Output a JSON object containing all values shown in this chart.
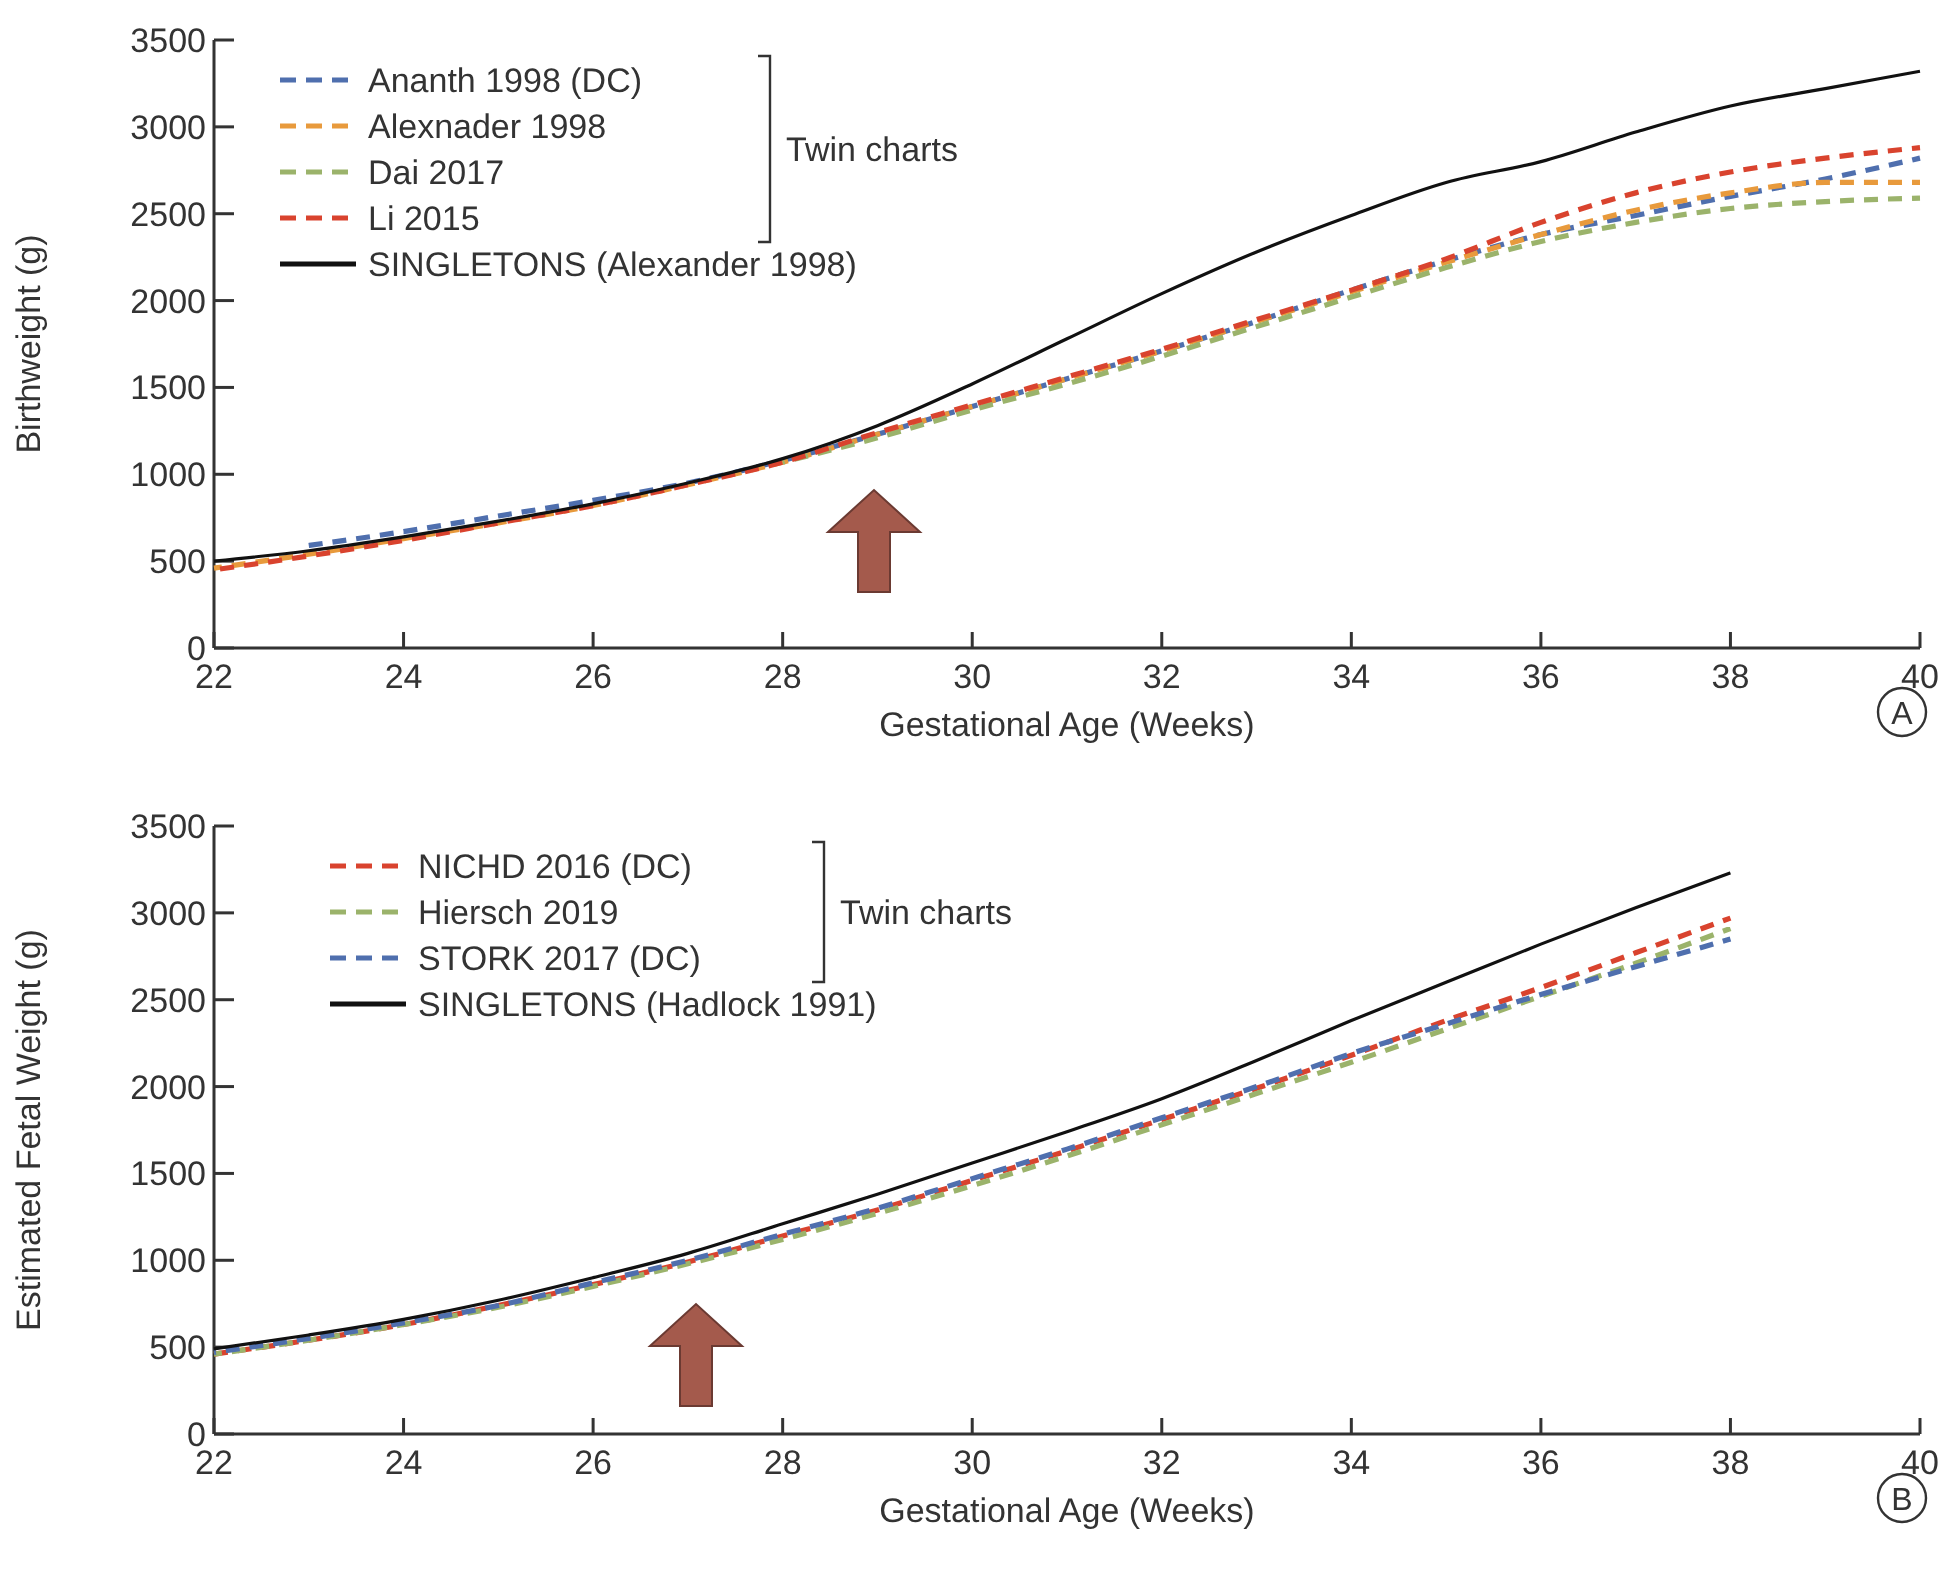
{
  "chart_data": [
    {
      "type": "line",
      "xlabel": "Gestational Age (Weeks)",
      "ylabel": "Birthweight (g)",
      "xlim": [
        22,
        40
      ],
      "xticks": [
        22,
        24,
        26,
        28,
        30,
        32,
        34,
        36,
        38,
        40
      ],
      "ylim": [
        0,
        3500
      ],
      "yticks": [
        0,
        500,
        1000,
        1500,
        2000,
        2500,
        3000,
        3500
      ],
      "grid": false,
      "legend": "top left",
      "marker": "none",
      "annotations": [
        "Twin charts",
        "A"
      ],
      "series": [
        {
          "name": "Ananth 1998 (DC)",
          "color": "#4f6fae",
          "line_style": "dashed",
          "x": [
            23,
            24,
            25,
            26,
            27,
            28,
            29,
            30,
            31,
            32,
            33,
            34,
            35,
            36,
            37,
            38,
            39,
            40
          ],
          "values": [
            590,
            670,
            760,
            850,
            950,
            1080,
            1230,
            1390,
            1550,
            1710,
            1880,
            2060,
            2230,
            2380,
            2490,
            2600,
            2700,
            2820
          ]
        },
        {
          "name": "Alexnader 1998",
          "color": "#e89a3c",
          "line_style": "dashed",
          "x": [
            22,
            23,
            24,
            25,
            26,
            27,
            28,
            29,
            30,
            31,
            32,
            33,
            34,
            35,
            36,
            37,
            38,
            39,
            40
          ],
          "values": [
            460,
            540,
            630,
            720,
            820,
            940,
            1070,
            1230,
            1390,
            1550,
            1710,
            1880,
            2050,
            2220,
            2380,
            2520,
            2620,
            2680,
            2680
          ]
        },
        {
          "name": "Dai 2017",
          "color": "#9bb36b",
          "line_style": "dashed",
          "x": [
            28,
            29,
            30,
            31,
            32,
            33,
            34,
            35,
            36,
            37,
            38,
            39,
            40
          ],
          "values": [
            1070,
            1210,
            1370,
            1520,
            1680,
            1850,
            2020,
            2190,
            2340,
            2450,
            2530,
            2570,
            2590
          ]
        },
        {
          "name": "Li 2015",
          "color": "#d9432e",
          "line_style": "dashed",
          "x": [
            22,
            23,
            24,
            25,
            26,
            27,
            28,
            29,
            30,
            31,
            32,
            33,
            34,
            35,
            36,
            37,
            38,
            39,
            40
          ],
          "values": [
            450,
            530,
            620,
            720,
            820,
            940,
            1070,
            1240,
            1400,
            1560,
            1720,
            1890,
            2060,
            2240,
            2450,
            2620,
            2740,
            2820,
            2880
          ]
        },
        {
          "name": "SINGLETONS (Alexander 1998)",
          "color": "#111111",
          "line_style": "solid",
          "x": [
            22,
            23,
            24,
            25,
            26,
            27,
            28,
            29,
            30,
            31,
            32,
            33,
            34,
            35,
            36,
            37,
            38,
            39,
            40
          ],
          "values": [
            500,
            560,
            640,
            730,
            830,
            950,
            1090,
            1280,
            1520,
            1780,
            2040,
            2280,
            2490,
            2680,
            2800,
            2970,
            3120,
            3220,
            3320
          ]
        }
      ]
    },
    {
      "type": "line",
      "xlabel": "Gestational Age (Weeks)",
      "ylabel": "Estimated Fetal Weight (g)",
      "xlim": [
        22,
        40
      ],
      "xticks": [
        22,
        24,
        26,
        28,
        30,
        32,
        34,
        36,
        38,
        40
      ],
      "ylim": [
        0,
        3500
      ],
      "yticks": [
        0,
        500,
        1000,
        1500,
        2000,
        2500,
        3000,
        3500
      ],
      "grid": false,
      "legend": "top left",
      "marker": "none",
      "annotations": [
        "Twin charts",
        "B"
      ],
      "series": [
        {
          "name": "NICHD 2016 (DC)",
          "color": "#d9432e",
          "line_style": "dashed",
          "x": [
            22,
            23,
            24,
            25,
            26,
            27,
            28,
            29,
            30,
            31,
            32,
            33,
            34,
            35,
            36,
            37,
            38
          ],
          "values": [
            460,
            540,
            630,
            740,
            860,
            990,
            1140,
            1290,
            1460,
            1630,
            1810,
            1990,
            2180,
            2380,
            2570,
            2770,
            2970
          ]
        },
        {
          "name": "Hiersch 2019",
          "color": "#9bb36b",
          "line_style": "dashed",
          "x": [
            22,
            23,
            24,
            25,
            26,
            27,
            28,
            29,
            30,
            31,
            32,
            33,
            34,
            35,
            36,
            37,
            38
          ],
          "values": [
            460,
            540,
            630,
            730,
            850,
            980,
            1120,
            1270,
            1430,
            1600,
            1780,
            1960,
            2140,
            2330,
            2520,
            2710,
            2910
          ]
        },
        {
          "name": "STORK 2017 (DC)",
          "color": "#4f6fae",
          "line_style": "dashed",
          "x": [
            22,
            23,
            24,
            25,
            26,
            27,
            28,
            29,
            30,
            31,
            32,
            33,
            34,
            35,
            36,
            37,
            38
          ],
          "values": [
            470,
            550,
            640,
            740,
            870,
            1000,
            1150,
            1300,
            1470,
            1640,
            1820,
            2000,
            2190,
            2360,
            2530,
            2690,
            2850
          ]
        },
        {
          "name": "SINGLETONS (Hadlock 1991)",
          "color": "#111111",
          "line_style": "solid",
          "x": [
            22,
            23,
            24,
            25,
            26,
            27,
            28,
            29,
            30,
            31,
            32,
            33,
            34,
            35,
            36,
            37,
            38
          ],
          "values": [
            490,
            570,
            660,
            770,
            900,
            1040,
            1210,
            1380,
            1560,
            1740,
            1930,
            2150,
            2380,
            2600,
            2820,
            3030,
            3230
          ]
        }
      ]
    }
  ]
}
